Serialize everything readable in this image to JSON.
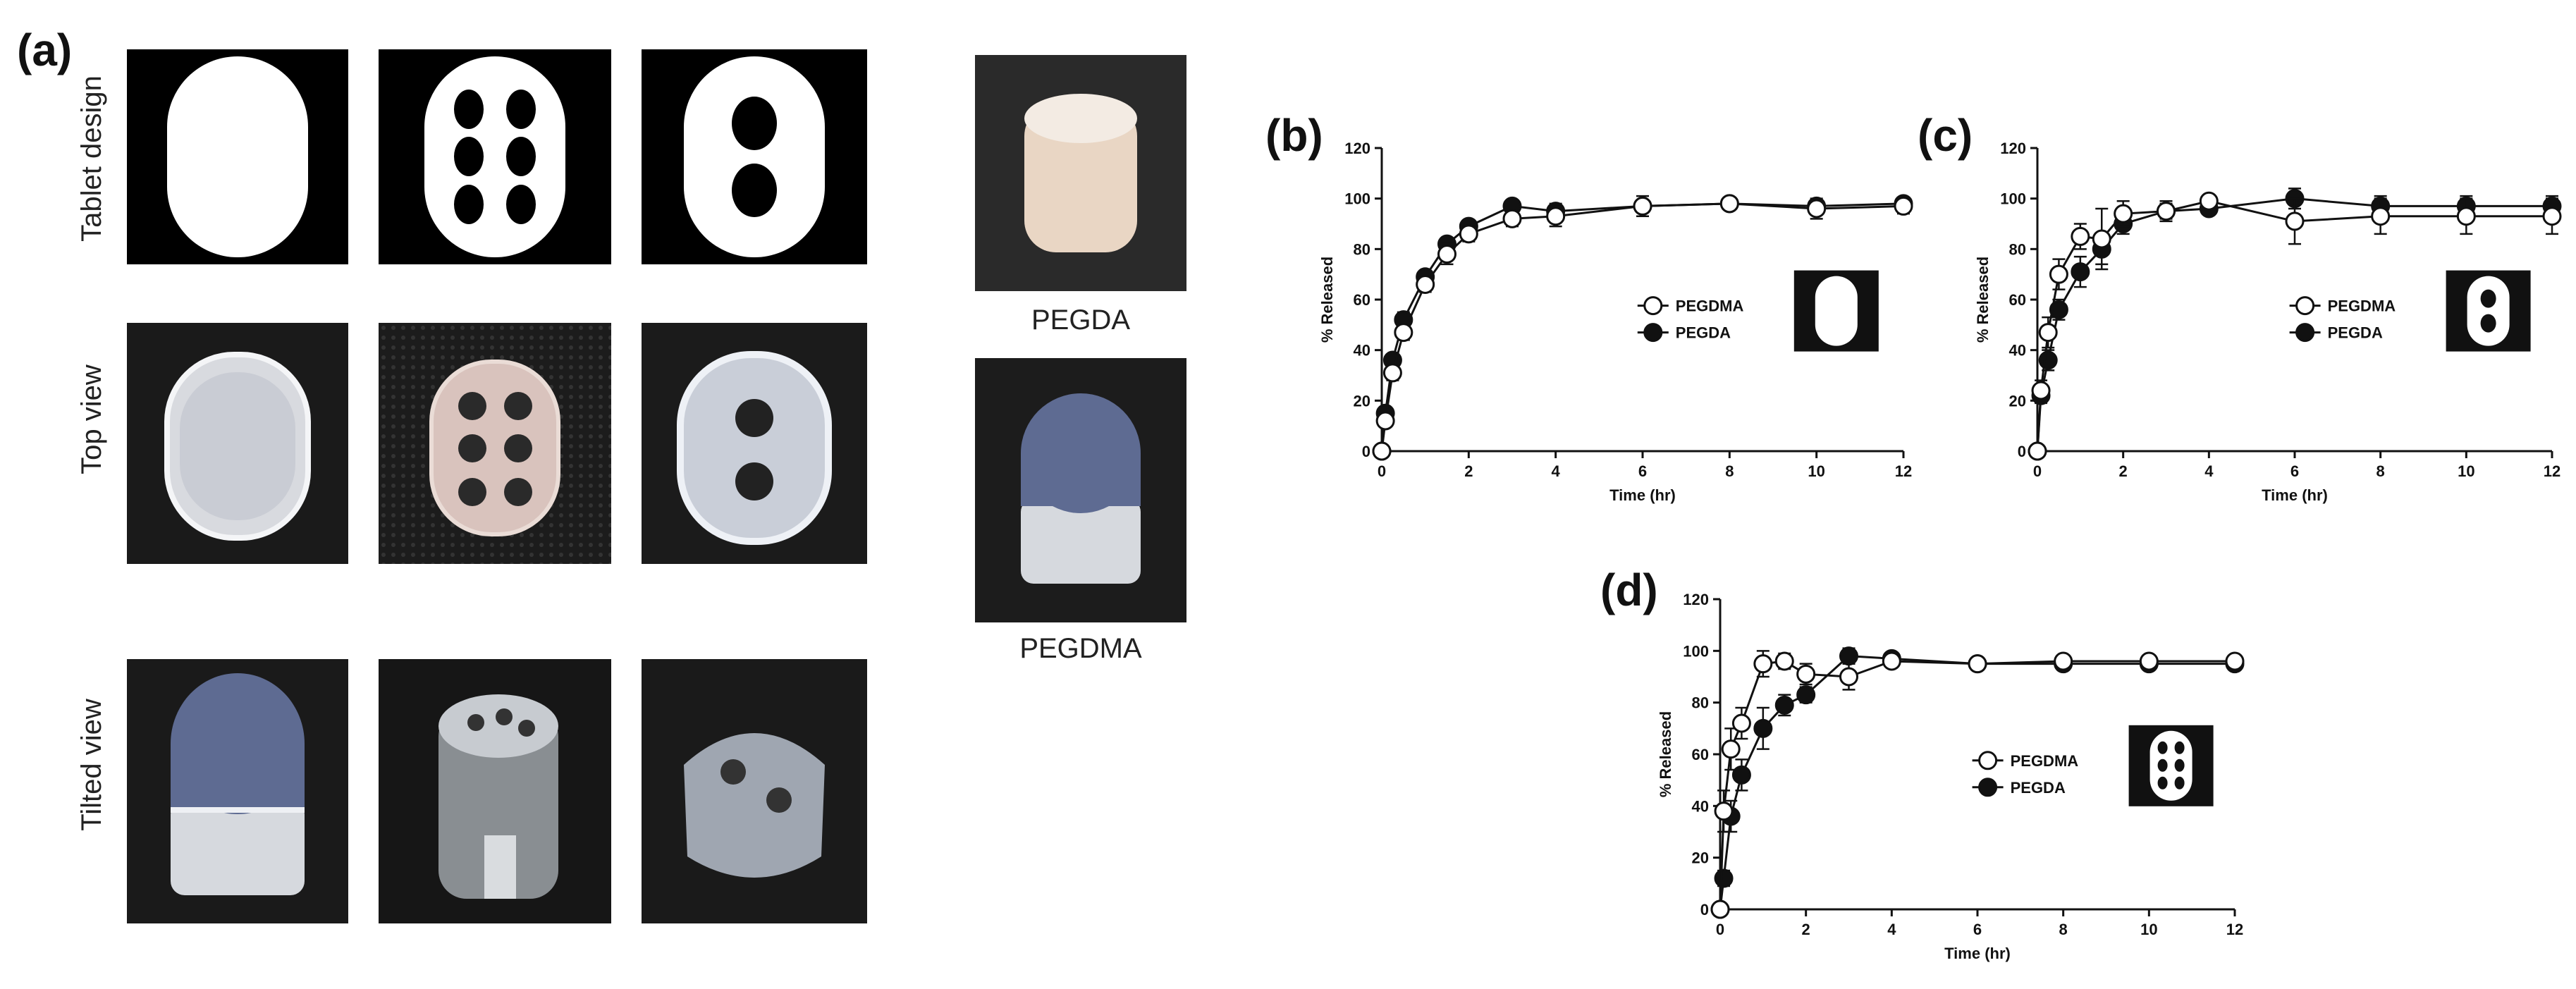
{
  "panel_a": {
    "letter": "(a)",
    "row_labels": [
      "Tablet design",
      "Top view",
      "Tilted view"
    ],
    "material_labels": [
      "PEGDA",
      "PEGDMA"
    ]
  },
  "chart_data": [
    {
      "id": "b",
      "letter": "(b)",
      "type": "line",
      "xlabel": "Time (hr)",
      "ylabel": "% Released",
      "xlim": [
        0,
        12
      ],
      "ylim": [
        0,
        120
      ],
      "xticks": [
        0,
        2,
        4,
        6,
        8,
        10,
        12
      ],
      "yticks": [
        0,
        20,
        40,
        60,
        80,
        100,
        120
      ],
      "legend_position": "right",
      "inset_icon": "solid-tablet-icon",
      "series": [
        {
          "name": "PEGDMA",
          "marker": "open",
          "x": [
            0,
            0.083,
            0.25,
            0.5,
            1,
            1.5,
            2,
            3,
            4,
            6,
            8,
            10,
            12
          ],
          "y": [
            0,
            12,
            31,
            47,
            66,
            78,
            86,
            92,
            93,
            97,
            98,
            96,
            97
          ],
          "err": [
            0,
            2,
            3,
            3,
            3,
            4,
            3,
            3,
            4,
            4,
            2,
            4,
            3
          ]
        },
        {
          "name": "PEGDA",
          "marker": "filled",
          "x": [
            0,
            0.083,
            0.25,
            0.5,
            1,
            1.5,
            2,
            3,
            4,
            6,
            8,
            10,
            12
          ],
          "y": [
            0,
            15,
            36,
            52,
            69,
            82,
            89,
            97,
            95,
            97,
            98,
            97,
            98
          ],
          "err": [
            0,
            2,
            2,
            3,
            2,
            2,
            2,
            2,
            3,
            2,
            1,
            2,
            2
          ]
        }
      ]
    },
    {
      "id": "c",
      "letter": "(c)",
      "type": "line",
      "xlabel": "Time (hr)",
      "ylabel": "% Released",
      "xlim": [
        0,
        12
      ],
      "ylim": [
        0,
        120
      ],
      "xticks": [
        0,
        2,
        4,
        6,
        8,
        10,
        12
      ],
      "yticks": [
        0,
        20,
        40,
        60,
        80,
        100,
        120
      ],
      "legend_position": "right",
      "inset_icon": "two-hole-tablet-icon",
      "series": [
        {
          "name": "PEGDMA",
          "marker": "open",
          "x": [
            0,
            0.083,
            0.25,
            0.5,
            1,
            1.5,
            2,
            3,
            4,
            6,
            8,
            10,
            12
          ],
          "y": [
            0,
            24,
            47,
            70,
            85,
            84,
            94,
            95,
            99,
            91,
            93,
            93,
            93
          ],
          "err": [
            0,
            4,
            6,
            6,
            5,
            12,
            5,
            4,
            2,
            9,
            7,
            7,
            7
          ]
        },
        {
          "name": "PEGDA",
          "marker": "filled",
          "x": [
            0,
            0.083,
            0.25,
            0.5,
            1,
            1.5,
            2,
            3,
            4,
            6,
            8,
            10,
            12
          ],
          "y": [
            0,
            22,
            36,
            56,
            71,
            80,
            90,
            95,
            96,
            100,
            97,
            97,
            97
          ],
          "err": [
            0,
            3,
            4,
            4,
            6,
            6,
            4,
            3,
            2,
            4,
            4,
            4,
            4
          ]
        }
      ]
    },
    {
      "id": "d",
      "letter": "(d)",
      "type": "line",
      "xlabel": "Time (hr)",
      "ylabel": "% Released",
      "xlim": [
        0,
        12
      ],
      "ylim": [
        0,
        120
      ],
      "xticks": [
        0,
        2,
        4,
        6,
        8,
        10,
        12
      ],
      "yticks": [
        0,
        20,
        40,
        60,
        80,
        100,
        120
      ],
      "legend_position": "right",
      "inset_icon": "six-hole-tablet-icon",
      "series": [
        {
          "name": "PEGDMA",
          "marker": "open",
          "x": [
            0,
            0.083,
            0.25,
            0.5,
            1,
            1.5,
            2,
            3,
            4,
            6,
            8,
            10,
            12
          ],
          "y": [
            0,
            38,
            62,
            72,
            95,
            96,
            91,
            90,
            96,
            95,
            96,
            96,
            96
          ],
          "err": [
            0,
            8,
            8,
            6,
            5,
            3,
            4,
            5,
            2,
            2,
            2,
            2,
            2
          ]
        },
        {
          "name": "PEGDA",
          "marker": "filled",
          "x": [
            0,
            0.083,
            0.25,
            0.5,
            1,
            1.5,
            2,
            3,
            4,
            6,
            8,
            10,
            12
          ],
          "y": [
            0,
            12,
            36,
            52,
            70,
            79,
            83,
            98,
            97,
            95,
            95,
            95,
            95
          ],
          "err": [
            0,
            3,
            6,
            6,
            8,
            4,
            3,
            3,
            2,
            1,
            1,
            1,
            1
          ]
        }
      ]
    }
  ]
}
